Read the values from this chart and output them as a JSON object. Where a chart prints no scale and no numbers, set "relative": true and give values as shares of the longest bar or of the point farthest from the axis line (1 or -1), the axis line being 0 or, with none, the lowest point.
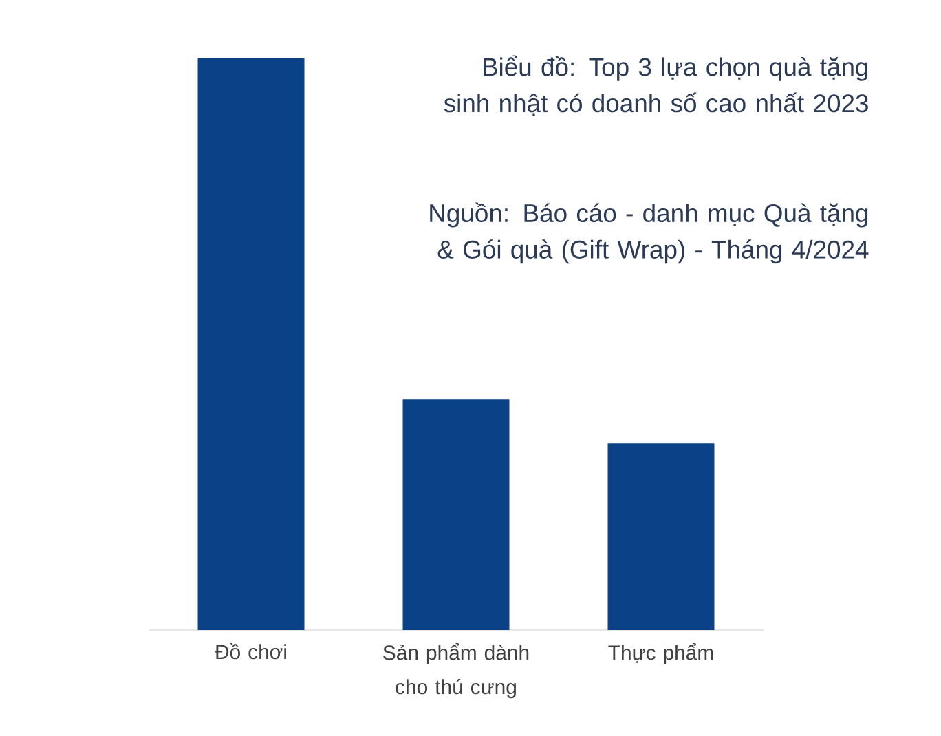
{
  "chart_data": {
    "type": "bar",
    "title": "Biểu đồ: Top 3 lựa chọn quà tặng sinh nhật có doanh số cao nhất 2023",
    "annotations": [
      "Nguồn: Báo cáo - danh mục Quà tặng & Gói quà (Gift Wrap) - Tháng 4/2024"
    ],
    "categories": [
      "Đồ chơi",
      "Sản phẩm dành cho thú cưng",
      "Thực phẩm"
    ],
    "values": [
      1,
      0.404,
      0.327
    ],
    "color": "#0b4187",
    "relative": true
  }
}
